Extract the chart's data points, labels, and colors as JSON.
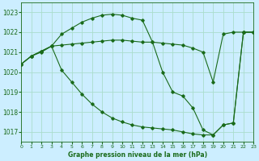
{
  "title": "Graphe pression niveau de la mer (hPa)",
  "background_color": "#cceeff",
  "grid_color": "#aaddcc",
  "line_color": "#1a6b1a",
  "xlim": [
    0,
    23
  ],
  "ylim": [
    1016.5,
    1023.5
  ],
  "xticks": [
    0,
    1,
    2,
    3,
    4,
    5,
    6,
    7,
    8,
    9,
    10,
    11,
    12,
    13,
    14,
    15,
    16,
    17,
    18,
    19,
    20,
    21,
    22,
    23
  ],
  "yticks": [
    1017,
    1018,
    1019,
    1020,
    1021,
    1022,
    1023
  ],
  "series1_up": {
    "x": [
      0,
      1,
      2,
      3,
      4,
      5,
      6,
      7,
      8,
      9,
      10,
      11,
      12,
      13,
      14,
      15,
      16,
      17,
      18,
      19,
      20,
      21,
      22,
      23
    ],
    "y": [
      1020.4,
      1020.8,
      1021.0,
      1021.3,
      1021.9,
      1022.2,
      1022.5,
      1022.7,
      1022.85,
      1022.9,
      1022.85,
      1022.7,
      1022.6,
      1021.5,
      1020.0,
      1019.0,
      1018.8,
      1018.2,
      1017.1,
      1016.85,
      1017.35,
      1017.45,
      1022.0,
      1022.0
    ]
  },
  "series2_flat": {
    "x": [
      0,
      1,
      2,
      3,
      4,
      5,
      6,
      7,
      8,
      9,
      10,
      11,
      12,
      13,
      14,
      15,
      16,
      17,
      18,
      19,
      20,
      21,
      22,
      23
    ],
    "y": [
      1020.4,
      1020.8,
      1021.05,
      1021.3,
      1021.35,
      1021.4,
      1021.45,
      1021.5,
      1021.55,
      1021.6,
      1021.6,
      1021.55,
      1021.5,
      1021.5,
      1021.45,
      1021.4,
      1021.35,
      1021.2,
      1021.0,
      1019.5,
      1021.9,
      1022.0,
      1022.0,
      1022.0
    ]
  },
  "series3_down": {
    "x": [
      0,
      1,
      2,
      3,
      4,
      5,
      6,
      7,
      8,
      9,
      10,
      11,
      12,
      13,
      14,
      15,
      16,
      17,
      18,
      19,
      20,
      21,
      22,
      23
    ],
    "y": [
      1020.4,
      1020.8,
      1021.05,
      1021.3,
      1020.1,
      1019.5,
      1018.9,
      1018.4,
      1018.0,
      1017.7,
      1017.5,
      1017.35,
      1017.25,
      1017.2,
      1017.15,
      1017.1,
      1017.0,
      1016.9,
      1016.85,
      1016.85,
      1017.35,
      1017.45,
      1022.0,
      1022.0
    ]
  }
}
